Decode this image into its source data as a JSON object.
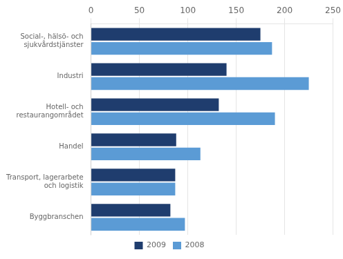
{
  "chart_data": {
    "type": "bar",
    "orientation": "horizontal",
    "categories": [
      "Social-, hälsö- och\nsjukvårdstjänster",
      "Industri",
      "Hotell- och\nrestaurangområdet",
      "Handel",
      "Transport, lagerarbete\noch logistik",
      "Byggbranschen"
    ],
    "series": [
      {
        "name": "2009",
        "color": "#1f3d6e",
        "values": [
          175,
          140,
          132,
          88,
          87,
          82
        ]
      },
      {
        "name": "2008",
        "color": "#5b9bd5",
        "values": [
          187,
          225,
          190,
          113,
          87,
          97
        ]
      }
    ],
    "xlim": [
      0,
      250
    ],
    "xticks": [
      0,
      50,
      100,
      150,
      200,
      250
    ],
    "grid": true,
    "legend": "bottom"
  }
}
